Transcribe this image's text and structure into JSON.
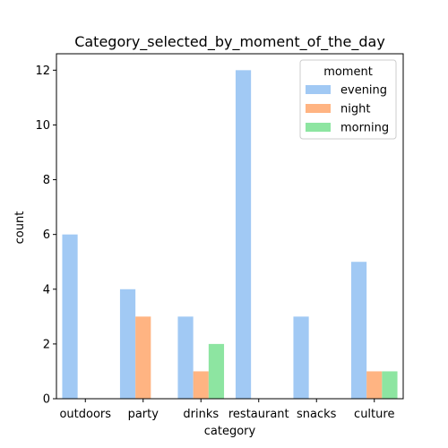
{
  "chart_data": {
    "type": "bar",
    "title": "Category_selected_by_moment_of_the_day",
    "xlabel": "category",
    "ylabel": "count",
    "categories": [
      "outdoors",
      "party",
      "drinks",
      "restaurant",
      "snacks",
      "culture"
    ],
    "series": [
      {
        "name": "evening",
        "color": "#a1c9f4",
        "values": [
          6,
          4,
          3,
          12,
          3,
          5
        ]
      },
      {
        "name": "night",
        "color": "#ffb482",
        "values": [
          0,
          3,
          1,
          0,
          0,
          1
        ]
      },
      {
        "name": "morning",
        "color": "#8de5a1",
        "values": [
          0,
          0,
          2,
          0,
          0,
          1
        ]
      }
    ],
    "ylim": [
      0,
      12.6
    ],
    "yticks": [
      0,
      2,
      4,
      6,
      8,
      10,
      12
    ],
    "grid": false,
    "legend": {
      "title": "moment",
      "placement": "top-right"
    }
  }
}
